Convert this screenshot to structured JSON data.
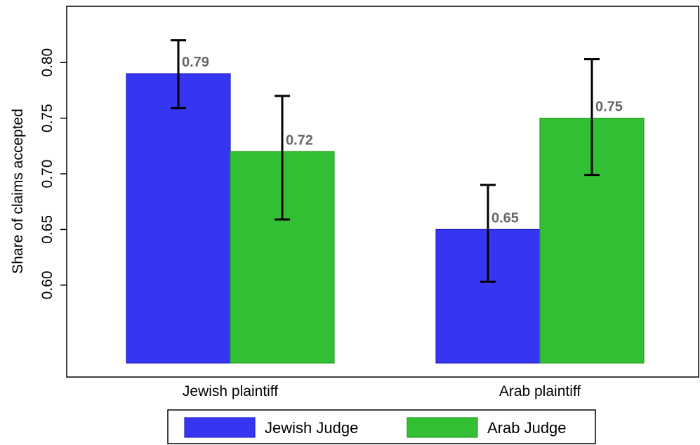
{
  "chart_data": {
    "type": "bar",
    "title": "",
    "ylabel": "Share of claims accepted",
    "xlabel": "",
    "categories": [
      "Jewish plaintiff",
      "Arab plaintiff"
    ],
    "series": [
      {
        "name": "Jewish Judge",
        "color": "#3636f2",
        "values": [
          0.79,
          0.65
        ],
        "labels": [
          "0.79",
          "0.65"
        ],
        "ci_low": [
          0.759,
          0.603
        ],
        "ci_high": [
          0.82,
          0.69
        ]
      },
      {
        "name": "Arab Judge",
        "color": "#33bf33",
        "values": [
          0.72,
          0.75
        ],
        "labels": [
          "0.72",
          "0.75"
        ],
        "ci_low": [
          0.659,
          0.699
        ],
        "ci_high": [
          0.77,
          0.803
        ]
      }
    ],
    "yticks": [
      0.6,
      0.65,
      0.7,
      0.75,
      0.8
    ],
    "ytick_labels": [
      "0.60",
      "0.65",
      "0.70",
      "0.75",
      "0.80"
    ],
    "ylim": [
      0.53,
      0.835
    ],
    "grid": false,
    "legend_position": "bottom",
    "error_bars": true
  }
}
